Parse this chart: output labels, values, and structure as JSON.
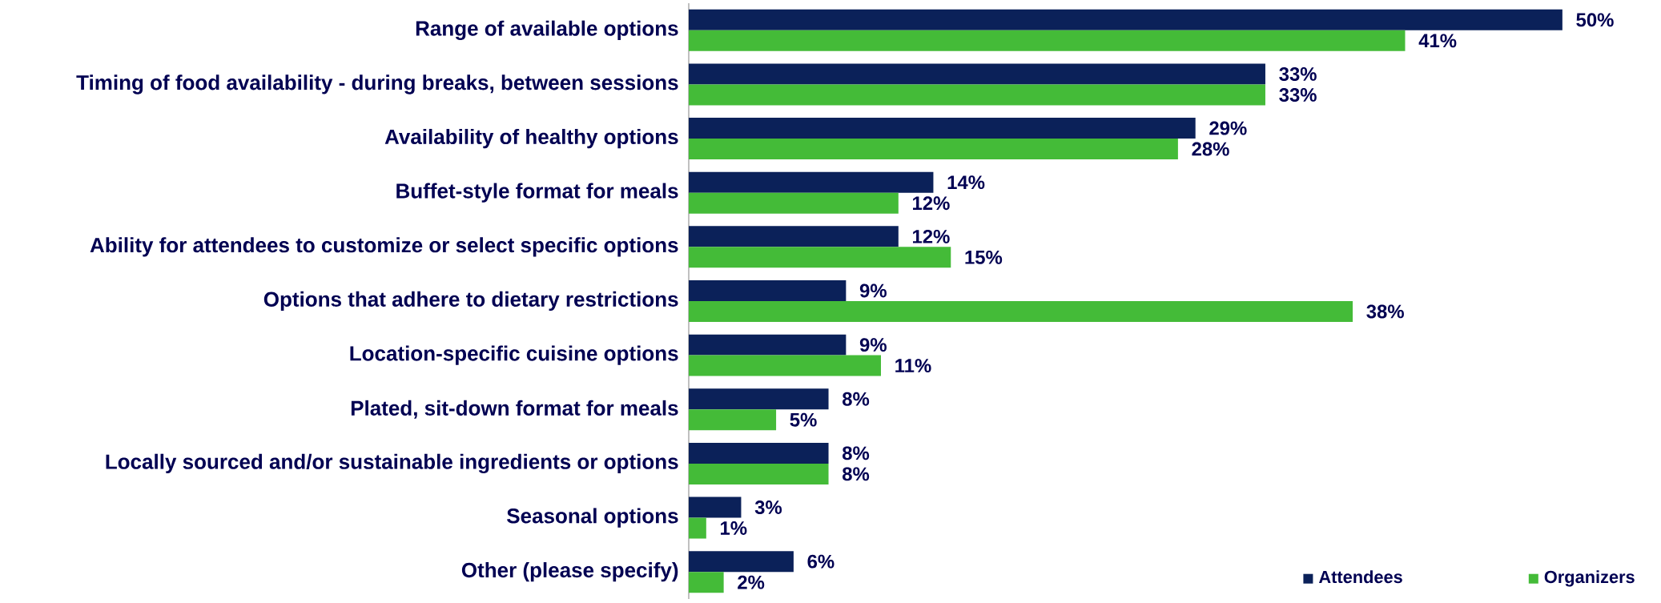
{
  "chart_data": {
    "type": "bar",
    "orientation": "horizontal",
    "categories": [
      "Range of available options",
      "Timing of food availability - during breaks, between sessions",
      "Availability of healthy options",
      "Buffet-style format for meals",
      "Ability for attendees to customize or select specific options",
      "Options that adhere to dietary restrictions",
      "Location-specific cuisine options",
      "Plated, sit-down format for meals",
      "Locally sourced and/or sustainable ingredients or options",
      "Seasonal options",
      "Other (please specify)"
    ],
    "series": [
      {
        "name": "Attendees",
        "color": "#0b2159",
        "values": [
          50,
          33,
          29,
          14,
          12,
          9,
          9,
          8,
          8,
          3,
          6
        ],
        "value_labels": [
          "50%",
          "33%",
          "29%",
          "14%",
          "12%",
          "9%",
          "9%",
          "8%",
          "8%",
          "3%",
          "6%"
        ]
      },
      {
        "name": "Organizers",
        "color": "#44bb38",
        "values": [
          41,
          33,
          28,
          12,
          15,
          38,
          11,
          5,
          8,
          1,
          2
        ],
        "value_labels": [
          "41%",
          "33%",
          "28%",
          "12%",
          "15%",
          "38%",
          "11%",
          "5%",
          "8%",
          "1%",
          "2%"
        ]
      }
    ],
    "tick_labels": "y",
    "legend": "bottom right"
  }
}
